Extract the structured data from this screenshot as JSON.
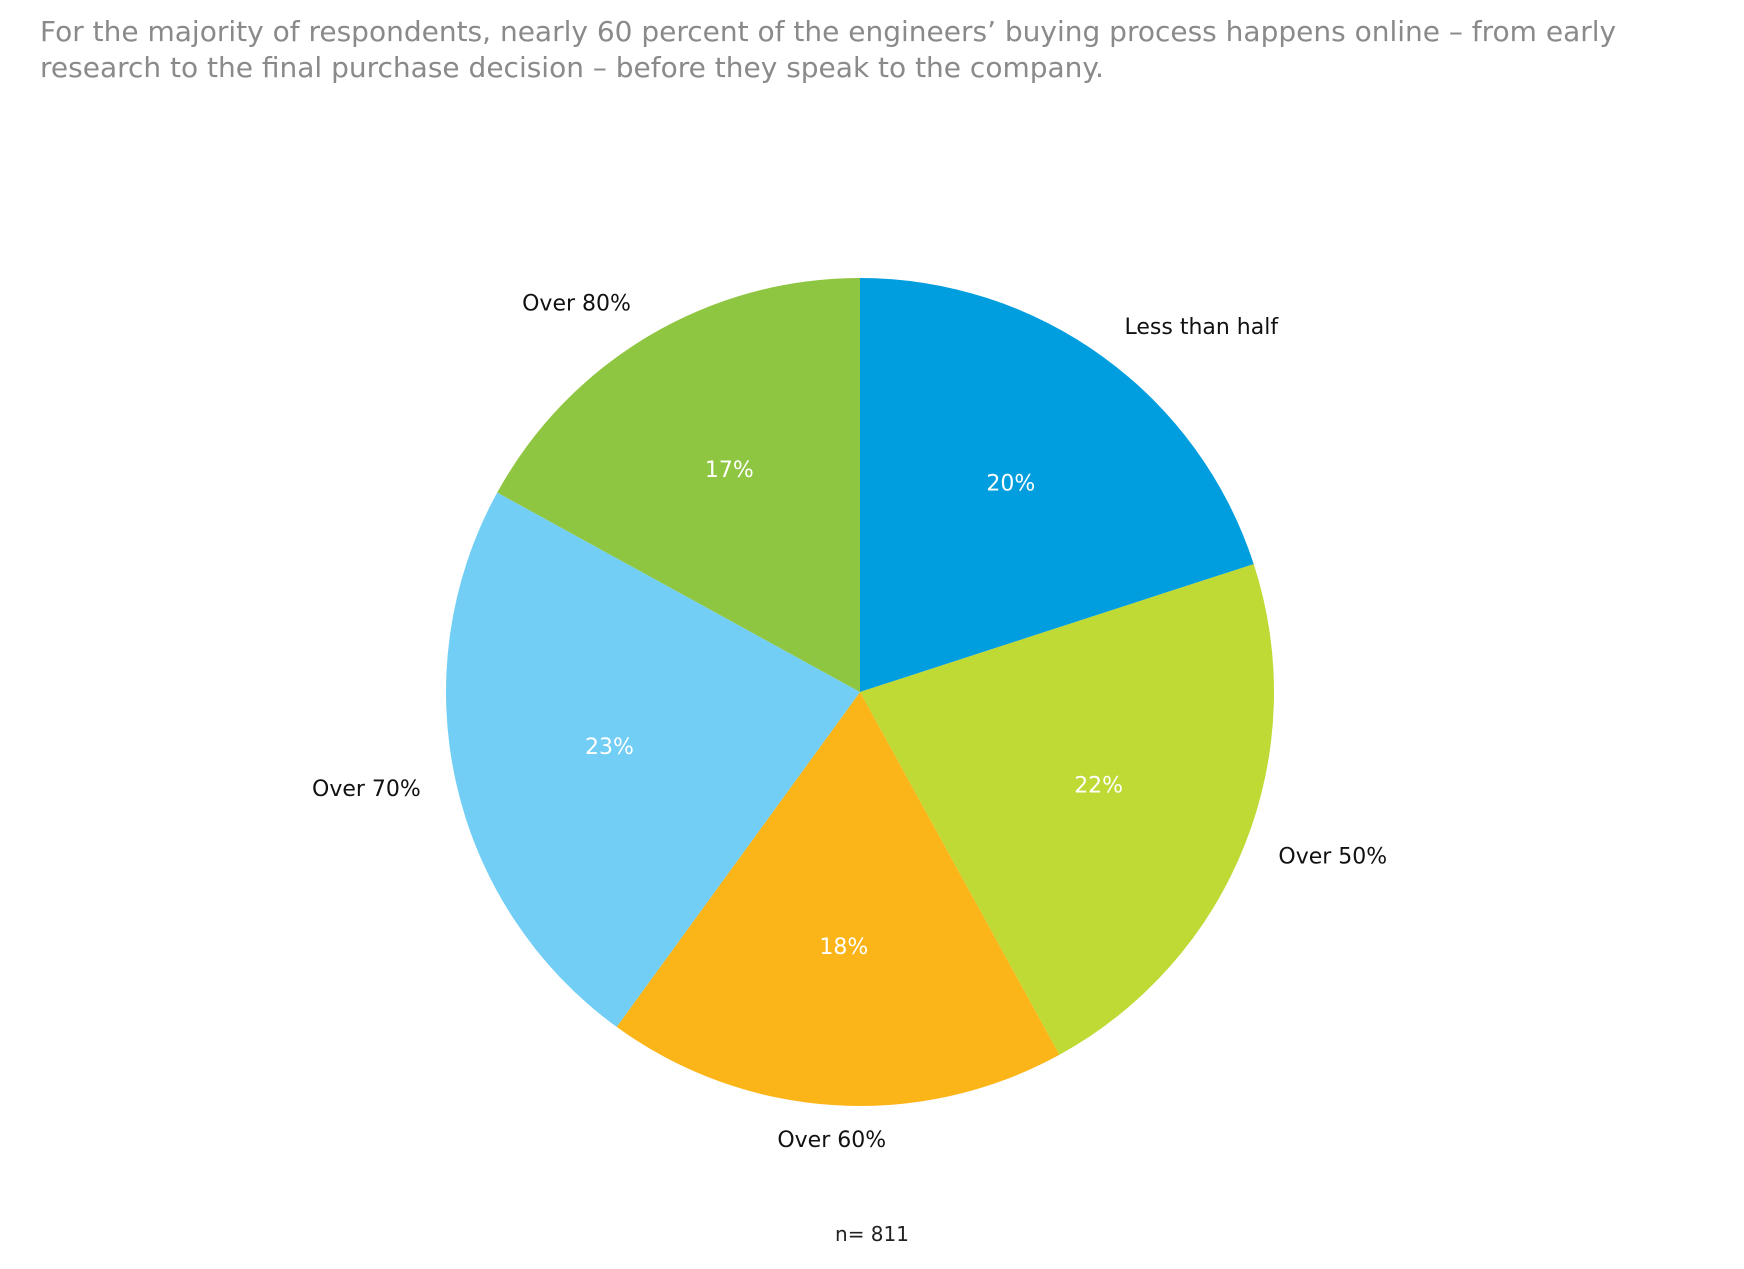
{
  "page": {
    "headline": "For the majority of respondents, nearly 60 percent of the engineers’ buying process happens online – from early research to the final purchase decision – before they speak to the company.",
    "sample_size": "n= 811"
  },
  "chart_data": {
    "type": "pie",
    "start": "12 o'clock",
    "direction": "clockwise",
    "slices": [
      {
        "label": "Less than half",
        "value": 20,
        "value_label": "20%",
        "color": "#009ede"
      },
      {
        "label": "Over 50%",
        "value": 22,
        "value_label": "22%",
        "color": "#bfd935"
      },
      {
        "label": "Over 60%",
        "value": 18,
        "value_label": "18%",
        "color": "#fbb518"
      },
      {
        "label": "Over 70%",
        "value": 23,
        "value_label": "23%",
        "color": "#72cef4"
      },
      {
        "label": "Over 80%",
        "value": 17,
        "value_label": "17%",
        "color": "#8fc641"
      }
    ]
  }
}
